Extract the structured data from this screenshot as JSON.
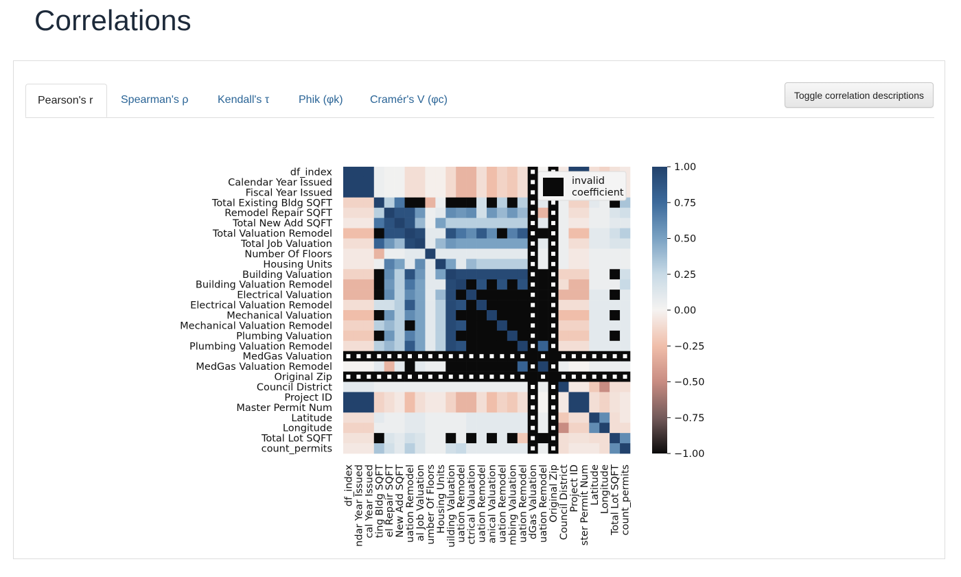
{
  "page": {
    "title": "Correlations"
  },
  "tabs": [
    {
      "label": "Pearson's r",
      "active": true
    },
    {
      "label": "Spearman's ρ",
      "active": false
    },
    {
      "label": "Kendall's τ",
      "active": false
    },
    {
      "label": "Phik (φk)",
      "active": false
    },
    {
      "label": "Cramér's V (φc)",
      "active": false
    }
  ],
  "toolbar": {
    "toggle_label": "Toggle correlation descriptions"
  },
  "chart_data": {
    "type": "heatmap",
    "title": "",
    "variables": [
      "df_index",
      "Calendar Year Issued",
      "Fiscal Year Issued",
      "Total Existing Bldg SQFT",
      "Remodel Repair SQFT",
      "Total New Add SQFT",
      "Total Valuation Remodel",
      "Total Job Valuation",
      "Number Of Floors",
      "Housing Units",
      "Building Valuation",
      "Building Valuation Remodel",
      "Electrical Valuation",
      "Electrical Valuation Remodel",
      "Mechanical Valuation",
      "Mechanical Valuation Remodel",
      "Plumbing Valuation",
      "Plumbing Valuation Remodel",
      "MedGas Valuation",
      "MedGas Valuation Remodel",
      "Original Zip",
      "Council District",
      "Project ID",
      "Master Permit Num",
      "Latitude",
      "Longitude",
      "Total Lot SQFT",
      "count_permits"
    ],
    "x_tick_labels": [
      "df_index",
      "ndar Year Issued",
      "cal Year Issued",
      "ting Bldg SQFT",
      "el Repair SQFT",
      "New Add SQFT",
      "uation Remodel",
      "al Job Valuation",
      "umber Of Floors",
      "Housing Units",
      "uilding Valuation",
      "uation Remodel",
      "ctrical Valuation",
      "uation Remodel",
      "anical Valuation",
      "uation Remodel",
      "mbing Valuation",
      "uation Remodel",
      "dGas Valuation",
      "uation Remodel",
      "Original Zip",
      "Council District",
      "Project ID",
      "ster Permit Num",
      "Latitude",
      "Longitude",
      "Total Lot SQFT",
      "count_permits"
    ],
    "colorbar": {
      "min": -1.0,
      "max": 1.0,
      "ticks": [
        "1.00",
        "0.75",
        "0.50",
        "0.25",
        "0.00",
        "−0.25",
        "−0.50",
        "−0.75",
        "−1.00"
      ]
    },
    "legend": {
      "label_line1": "invalid",
      "label_line2": "coefficient",
      "position": "top-right"
    },
    "invalid_columns": [
      18,
      20
    ],
    "invalid_rows": [
      18,
      20
    ],
    "matrix": [
      [
        1,
        1,
        1,
        0.05,
        0.02,
        0.02,
        -0.1,
        -0.1,
        -0.02,
        -0.02,
        -0.12,
        -0.3,
        -0.3,
        -0.1,
        -0.25,
        -0.15,
        -0.2,
        -0.1,
        null,
        0,
        null,
        -0.05,
        1,
        1,
        -0.1,
        -0.15,
        -0.08,
        -0.05
      ],
      [
        1,
        1,
        1,
        0.05,
        0.02,
        0.02,
        -0.1,
        -0.1,
        -0.02,
        -0.02,
        -0.12,
        -0.3,
        -0.3,
        -0.1,
        -0.25,
        -0.15,
        -0.2,
        -0.1,
        null,
        0,
        null,
        -0.05,
        1,
        1,
        -0.1,
        -0.15,
        -0.08,
        -0.05
      ],
      [
        1,
        1,
        1,
        0.05,
        0.02,
        0.02,
        -0.1,
        -0.1,
        -0.02,
        -0.02,
        -0.12,
        -0.3,
        -0.3,
        -0.1,
        -0.25,
        -0.15,
        -0.2,
        -0.1,
        null,
        0,
        null,
        -0.05,
        1,
        1,
        -0.1,
        -0.15,
        -0.08,
        -0.05
      ],
      [
        -0.15,
        -0.15,
        -0.15,
        1,
        0.3,
        0.7,
        null,
        null,
        -0.3,
        0.05,
        null,
        null,
        null,
        0.2,
        null,
        0.3,
        null,
        0.3,
        null,
        0.1,
        null,
        0.05,
        -0.15,
        -0.15,
        0.1,
        0.05,
        null,
        0.35
      ],
      [
        -0.1,
        -0.1,
        -0.1,
        0.3,
        1,
        0.9,
        0.9,
        0.55,
        0.05,
        0.1,
        0.6,
        0.55,
        0.6,
        0.2,
        0.55,
        0.4,
        0.55,
        0.4,
        null,
        -0.3,
        null,
        0.05,
        -0.1,
        -0.1,
        0.05,
        0.05,
        0.15,
        0.2
      ],
      [
        -0.05,
        -0.05,
        -0.05,
        0.7,
        0.9,
        1,
        0.9,
        0.4,
        0.05,
        0.5,
        0.3,
        0.3,
        0.3,
        0.3,
        0.3,
        0.3,
        0.3,
        0.3,
        null,
        0.1,
        null,
        0.05,
        -0.05,
        -0.05,
        0.05,
        0.05,
        0.1,
        0.1
      ],
      [
        -0.25,
        -0.25,
        -0.25,
        null,
        0.9,
        0.9,
        1,
        0.95,
        0.1,
        0.1,
        0.9,
        0.7,
        0.6,
        0.85,
        0.6,
        null,
        0.65,
        0.85,
        null,
        null,
        null,
        0.05,
        -0.25,
        -0.25,
        0.1,
        0.1,
        0.2,
        0.3
      ],
      [
        -0.1,
        -0.1,
        -0.1,
        0.8,
        0.55,
        0.4,
        0.95,
        1,
        0.1,
        0.4,
        0.55,
        0.5,
        0.5,
        0.5,
        0.5,
        0.5,
        0.5,
        0.5,
        null,
        0.1,
        null,
        0.05,
        -0.1,
        -0.1,
        0.1,
        0.1,
        0.15,
        0.15
      ],
      [
        -0.05,
        -0.05,
        -0.05,
        -0.3,
        0.05,
        0.05,
        0.1,
        0.1,
        1,
        0.1,
        0.1,
        0.1,
        0.1,
        0.1,
        0.1,
        0.1,
        0.1,
        0.1,
        null,
        0.05,
        null,
        0.05,
        -0.05,
        -0.05,
        0.05,
        0.05,
        0.05,
        0.05
      ],
      [
        -0.05,
        -0.05,
        -0.05,
        0.05,
        0.65,
        0.5,
        0.1,
        0.6,
        0.1,
        1,
        0.5,
        0.1,
        0.4,
        0.3,
        0.3,
        0.3,
        0.3,
        0.3,
        null,
        0.05,
        null,
        0.05,
        -0.05,
        -0.05,
        0.05,
        0.05,
        0.05,
        0.05
      ],
      [
        -0.15,
        -0.15,
        -0.15,
        null,
        0.6,
        0.3,
        0.9,
        0.55,
        0.1,
        0.5,
        1,
        0.95,
        0.95,
        0.95,
        0.95,
        0.95,
        0.95,
        0.95,
        null,
        null,
        null,
        -0.15,
        -0.15,
        -0.15,
        0.05,
        0.05,
        null,
        0.2
      ],
      [
        -0.3,
        -0.3,
        -0.3,
        null,
        0.55,
        0.3,
        0.7,
        0.5,
        0.1,
        0.1,
        0.95,
        1,
        null,
        0.9,
        null,
        0.9,
        null,
        0.9,
        null,
        null,
        null,
        -0.1,
        -0.3,
        -0.3,
        0.05,
        0.05,
        0.05,
        0.25
      ],
      [
        -0.3,
        -0.3,
        -0.3,
        null,
        0.6,
        0.3,
        0.6,
        0.5,
        0.1,
        0.4,
        0.95,
        null,
        1,
        null,
        null,
        null,
        null,
        null,
        null,
        null,
        null,
        -0.3,
        -0.3,
        -0.3,
        0.1,
        0.1,
        null,
        0.1
      ],
      [
        -0.1,
        -0.1,
        -0.1,
        0.2,
        0.2,
        0.3,
        0.85,
        0.5,
        0.1,
        0.3,
        0.95,
        0.9,
        null,
        1,
        null,
        null,
        null,
        null,
        null,
        null,
        null,
        -0.1,
        -0.1,
        -0.1,
        0.1,
        0.1,
        0.1,
        0.1
      ],
      [
        -0.25,
        -0.25,
        -0.25,
        null,
        0.55,
        0.3,
        0.6,
        0.5,
        0.1,
        0.3,
        0.95,
        null,
        null,
        null,
        1,
        null,
        null,
        null,
        null,
        null,
        null,
        -0.25,
        -0.25,
        -0.25,
        0.1,
        0.1,
        null,
        0.1
      ],
      [
        -0.15,
        -0.15,
        -0.15,
        0.3,
        0.4,
        0.3,
        null,
        0.5,
        0.1,
        0.3,
        0.95,
        0.9,
        null,
        null,
        null,
        1,
        null,
        null,
        null,
        null,
        null,
        -0.15,
        -0.15,
        -0.15,
        0.1,
        0.1,
        0.1,
        0.1
      ],
      [
        -0.2,
        -0.2,
        -0.2,
        null,
        0.55,
        0.3,
        0.65,
        0.5,
        0.1,
        0.3,
        0.95,
        null,
        null,
        null,
        null,
        null,
        1,
        null,
        null,
        null,
        null,
        -0.2,
        -0.2,
        -0.2,
        0.1,
        0.1,
        null,
        0.1
      ],
      [
        -0.1,
        -0.1,
        -0.1,
        0.3,
        0.4,
        0.3,
        0.85,
        0.5,
        0.1,
        0.3,
        0.95,
        0.9,
        null,
        null,
        null,
        null,
        null,
        1,
        null,
        0.8,
        null,
        -0.1,
        -0.1,
        -0.1,
        0.1,
        0.1,
        0.1,
        0.1
      ],
      [
        null,
        null,
        null,
        null,
        null,
        null,
        null,
        null,
        null,
        null,
        null,
        null,
        null,
        null,
        null,
        null,
        null,
        null,
        null,
        null,
        null,
        null,
        null,
        null,
        null,
        null,
        null,
        null
      ],
      [
        0,
        0,
        0,
        0.1,
        -0.3,
        0.1,
        null,
        0.1,
        0.05,
        0.05,
        null,
        null,
        null,
        null,
        null,
        null,
        null,
        0.8,
        null,
        1,
        null,
        0.05,
        0,
        0,
        0.05,
        0.05,
        0.05,
        0.05
      ],
      [
        null,
        null,
        null,
        null,
        null,
        null,
        null,
        null,
        null,
        null,
        null,
        null,
        null,
        null,
        null,
        null,
        null,
        null,
        null,
        null,
        null,
        null,
        null,
        null,
        null,
        null,
        null,
        null
      ],
      [
        0.1,
        0.1,
        0.1,
        0.05,
        0.05,
        0.05,
        0.05,
        0.05,
        0.05,
        0.05,
        0.05,
        0.05,
        0.05,
        0.05,
        0.05,
        0.05,
        0.05,
        0.05,
        null,
        0.05,
        null,
        1,
        -0.05,
        -0.05,
        -0.2,
        -0.5,
        -0.1,
        -0.1
      ],
      [
        1,
        1,
        1,
        -0.15,
        -0.1,
        -0.05,
        -0.25,
        -0.1,
        -0.05,
        -0.05,
        -0.15,
        -0.3,
        -0.3,
        -0.1,
        -0.25,
        -0.15,
        -0.2,
        -0.1,
        null,
        0,
        null,
        -0.05,
        1,
        1,
        -0.1,
        -0.15,
        -0.08,
        -0.05
      ],
      [
        1,
        1,
        1,
        -0.15,
        -0.1,
        -0.05,
        -0.25,
        -0.1,
        -0.05,
        -0.05,
        -0.15,
        -0.3,
        -0.3,
        -0.1,
        -0.25,
        -0.15,
        -0.2,
        -0.1,
        null,
        0,
        null,
        -0.05,
        1,
        1,
        -0.1,
        -0.15,
        -0.08,
        -0.05
      ],
      [
        -0.1,
        -0.1,
        -0.1,
        0.1,
        0.05,
        0.05,
        0.1,
        0.1,
        0.05,
        0.05,
        0.05,
        0.05,
        0.1,
        0.1,
        0.1,
        0.1,
        0.1,
        0.1,
        null,
        0.05,
        null,
        -0.2,
        -0.1,
        -0.1,
        1,
        0.6,
        -0.1,
        -0.05
      ],
      [
        -0.15,
        -0.15,
        -0.15,
        0.05,
        0.05,
        0.05,
        0.1,
        0.1,
        0.05,
        0.05,
        0.05,
        0.05,
        0.1,
        0.1,
        0.1,
        0.1,
        0.1,
        0.1,
        null,
        0.05,
        null,
        -0.5,
        -0.15,
        -0.15,
        0.6,
        1,
        -0.1,
        -0.1
      ],
      [
        -0.08,
        -0.08,
        -0.08,
        null,
        0.15,
        0.1,
        0.2,
        0.15,
        0.05,
        0.05,
        null,
        0.05,
        null,
        0.1,
        null,
        0.1,
        null,
        -0.2,
        null,
        null,
        null,
        -0.1,
        -0.08,
        -0.08,
        -0.1,
        -0.1,
        1,
        0.6
      ],
      [
        -0.05,
        -0.05,
        -0.05,
        0.35,
        0.2,
        0.1,
        0.3,
        0.15,
        0.05,
        0.05,
        0.2,
        0.25,
        0.1,
        0.1,
        0.1,
        0.1,
        0.1,
        0.1,
        null,
        0.05,
        null,
        -0.1,
        -0.05,
        -0.05,
        -0.05,
        -0.1,
        0.6,
        1
      ]
    ]
  }
}
